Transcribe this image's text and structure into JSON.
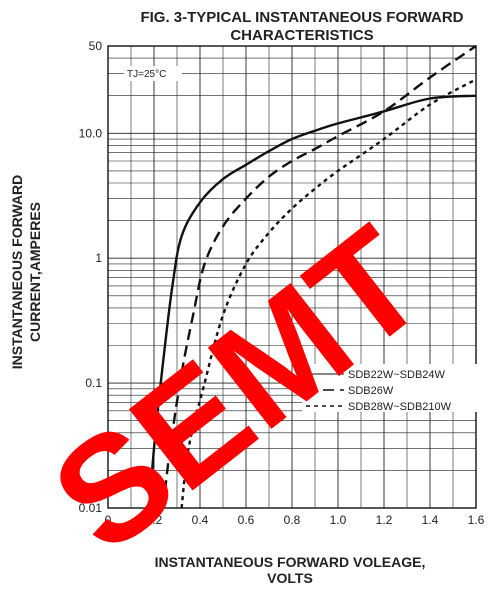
{
  "chart_data": {
    "type": "line",
    "title": [
      "FIG. 3-TYPICAL INSTANTANEOUS FORWARD",
      "CHARACTERISTICS"
    ],
    "xlabel": [
      "INSTANTANEOUS FORWARD VOLEAGE,",
      "VOLTS"
    ],
    "ylabel": [
      "INSTANTANEOUS FORWARD",
      "CURRENT,AMPERES"
    ],
    "x_ticks": [
      {
        "v": 0,
        "label": "0"
      },
      {
        "v": 0.2,
        "label": "0.2"
      },
      {
        "v": 0.4,
        "label": "0.4"
      },
      {
        "v": 0.6,
        "label": "0.6"
      },
      {
        "v": 0.8,
        "label": "0.8"
      },
      {
        "v": 1.0,
        "label": "1.0"
      },
      {
        "v": 1.2,
        "label": "1.2"
      },
      {
        "v": 1.4,
        "label": "1.4"
      },
      {
        "v": 1.6,
        "label": "1.6"
      }
    ],
    "y_ticks": [
      {
        "v": 0.01,
        "label": "0.01"
      },
      {
        "v": 0.1,
        "label": "0.1"
      },
      {
        "v": 1,
        "label": "1"
      },
      {
        "v": 10,
        "label": "10.0"
      },
      {
        "v": 50,
        "label": "50"
      }
    ],
    "xlim": [
      0,
      1.6
    ],
    "ylim": [
      0.01,
      50
    ],
    "yscale": "log",
    "grid": true,
    "annotation": "TJ=25°C",
    "legend_position": "right",
    "series": [
      {
        "name": "SDB22W~SDB24W",
        "style": "solid",
        "points": [
          [
            0.18,
            0.01
          ],
          [
            0.2,
            0.03
          ],
          [
            0.24,
            0.15
          ],
          [
            0.28,
            0.6
          ],
          [
            0.32,
            1.5
          ],
          [
            0.4,
            2.8
          ],
          [
            0.5,
            4.3
          ],
          [
            0.6,
            5.6
          ],
          [
            0.7,
            7.2
          ],
          [
            0.8,
            9.0
          ],
          [
            0.9,
            10.5
          ],
          [
            1.0,
            12.0
          ],
          [
            1.2,
            15.0
          ],
          [
            1.4,
            19.0
          ],
          [
            1.6,
            20.0
          ]
        ]
      },
      {
        "name": "SDB26W",
        "style": "dashed",
        "points": [
          [
            0.24,
            0.01
          ],
          [
            0.27,
            0.03
          ],
          [
            0.32,
            0.12
          ],
          [
            0.37,
            0.35
          ],
          [
            0.42,
            0.9
          ],
          [
            0.5,
            1.8
          ],
          [
            0.6,
            3.0
          ],
          [
            0.7,
            4.5
          ],
          [
            0.8,
            6.0
          ],
          [
            0.9,
            7.5
          ],
          [
            1.0,
            9.5
          ],
          [
            1.2,
            15.0
          ],
          [
            1.4,
            28.0
          ],
          [
            1.6,
            50.0
          ]
        ]
      },
      {
        "name": "SDB28W~SDB210W",
        "style": "dotted",
        "points": [
          [
            0.32,
            0.01
          ],
          [
            0.35,
            0.03
          ],
          [
            0.42,
            0.1
          ],
          [
            0.5,
            0.35
          ],
          [
            0.6,
            0.9
          ],
          [
            0.7,
            1.6
          ],
          [
            0.8,
            2.5
          ],
          [
            0.9,
            3.6
          ],
          [
            1.0,
            5.0
          ],
          [
            1.2,
            9.0
          ],
          [
            1.4,
            17.0
          ],
          [
            1.6,
            27.0
          ]
        ]
      }
    ]
  },
  "watermark": "SEMT"
}
